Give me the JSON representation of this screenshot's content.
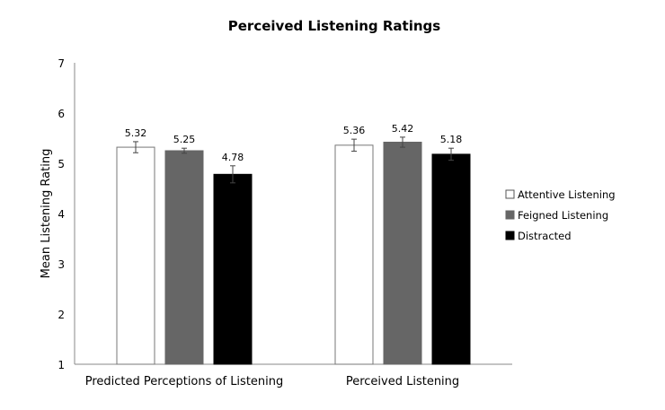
{
  "chart_data": {
    "type": "bar",
    "title": "Perceived Listening Ratings",
    "xlabel": "",
    "ylabel": "Mean Listening Rating",
    "ylim": [
      1,
      7
    ],
    "yticks": [
      "1",
      "2",
      "3",
      "4",
      "5",
      "6",
      "7"
    ],
    "grid": false,
    "legend_position": "right",
    "categories": [
      "Predicted Perceptions of Listening",
      "Perceived Listening"
    ],
    "series": [
      {
        "name": "Attentive Listening",
        "color": "#ffffff",
        "values": [
          5.32,
          5.36
        ],
        "errors": [
          0.11,
          0.12
        ],
        "labels": [
          "5.32",
          "5.36"
        ]
      },
      {
        "name": "Feigned Listening",
        "color": "#666666",
        "values": [
          5.25,
          5.42
        ],
        "errors": [
          0.05,
          0.1
        ],
        "labels": [
          "5.25",
          "5.42"
        ]
      },
      {
        "name": "Distracted",
        "color": "#000000",
        "values": [
          4.78,
          5.18
        ],
        "errors": [
          0.17,
          0.12
        ],
        "labels": [
          "4.78",
          "5.18"
        ]
      }
    ]
  }
}
